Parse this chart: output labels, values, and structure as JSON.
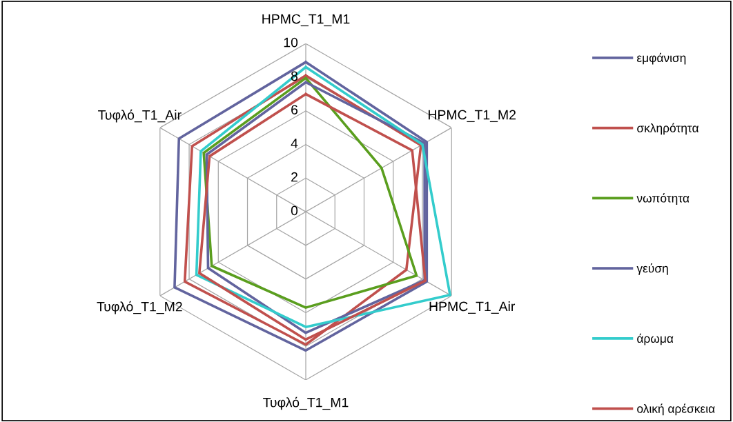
{
  "chart_data": {
    "type": "radar",
    "categories": [
      "HPMC_T1_M1",
      "HPMC_T1_M2",
      "HPMC_T1_Air",
      "Τυφλό_T1_M1",
      "Τυφλό_T1_M2",
      "Τυφλό_T1_Air"
    ],
    "ylim": [
      0,
      10
    ],
    "yticks": [
      0,
      2,
      4,
      6,
      8,
      10
    ],
    "grid": true,
    "legend": "right",
    "marker": "none",
    "series": [
      {
        "name": "εμφάνιση",
        "color": "#62649e",
        "values": [
          8.9,
          8.3,
          8.3,
          8.25,
          9.0,
          8.7
        ]
      },
      {
        "name": "σκληρότητα",
        "color": "#c0504d",
        "values": [
          8.1,
          7.9,
          6.9,
          7.9,
          8.3,
          7.8
        ]
      },
      {
        "name": "νωπότητα",
        "color": "#5a9e1e",
        "values": [
          7.95,
          5.2,
          7.6,
          5.7,
          6.45,
          7.0
        ]
      },
      {
        "name": "γεύση",
        "color": "#62649e",
        "values": [
          7.7,
          8.15,
          8.15,
          7.2,
          6.7,
          6.8
        ]
      },
      {
        "name": "άρωμα",
        "color": "#33cccc",
        "values": [
          8.6,
          8.0,
          9.9,
          6.85,
          7.5,
          7.2
        ]
      },
      {
        "name": "ολική αρέσκεια",
        "color": "#c0504d",
        "values": [
          7.0,
          7.3,
          8.2,
          7.6,
          7.3,
          6.6
        ]
      }
    ]
  }
}
